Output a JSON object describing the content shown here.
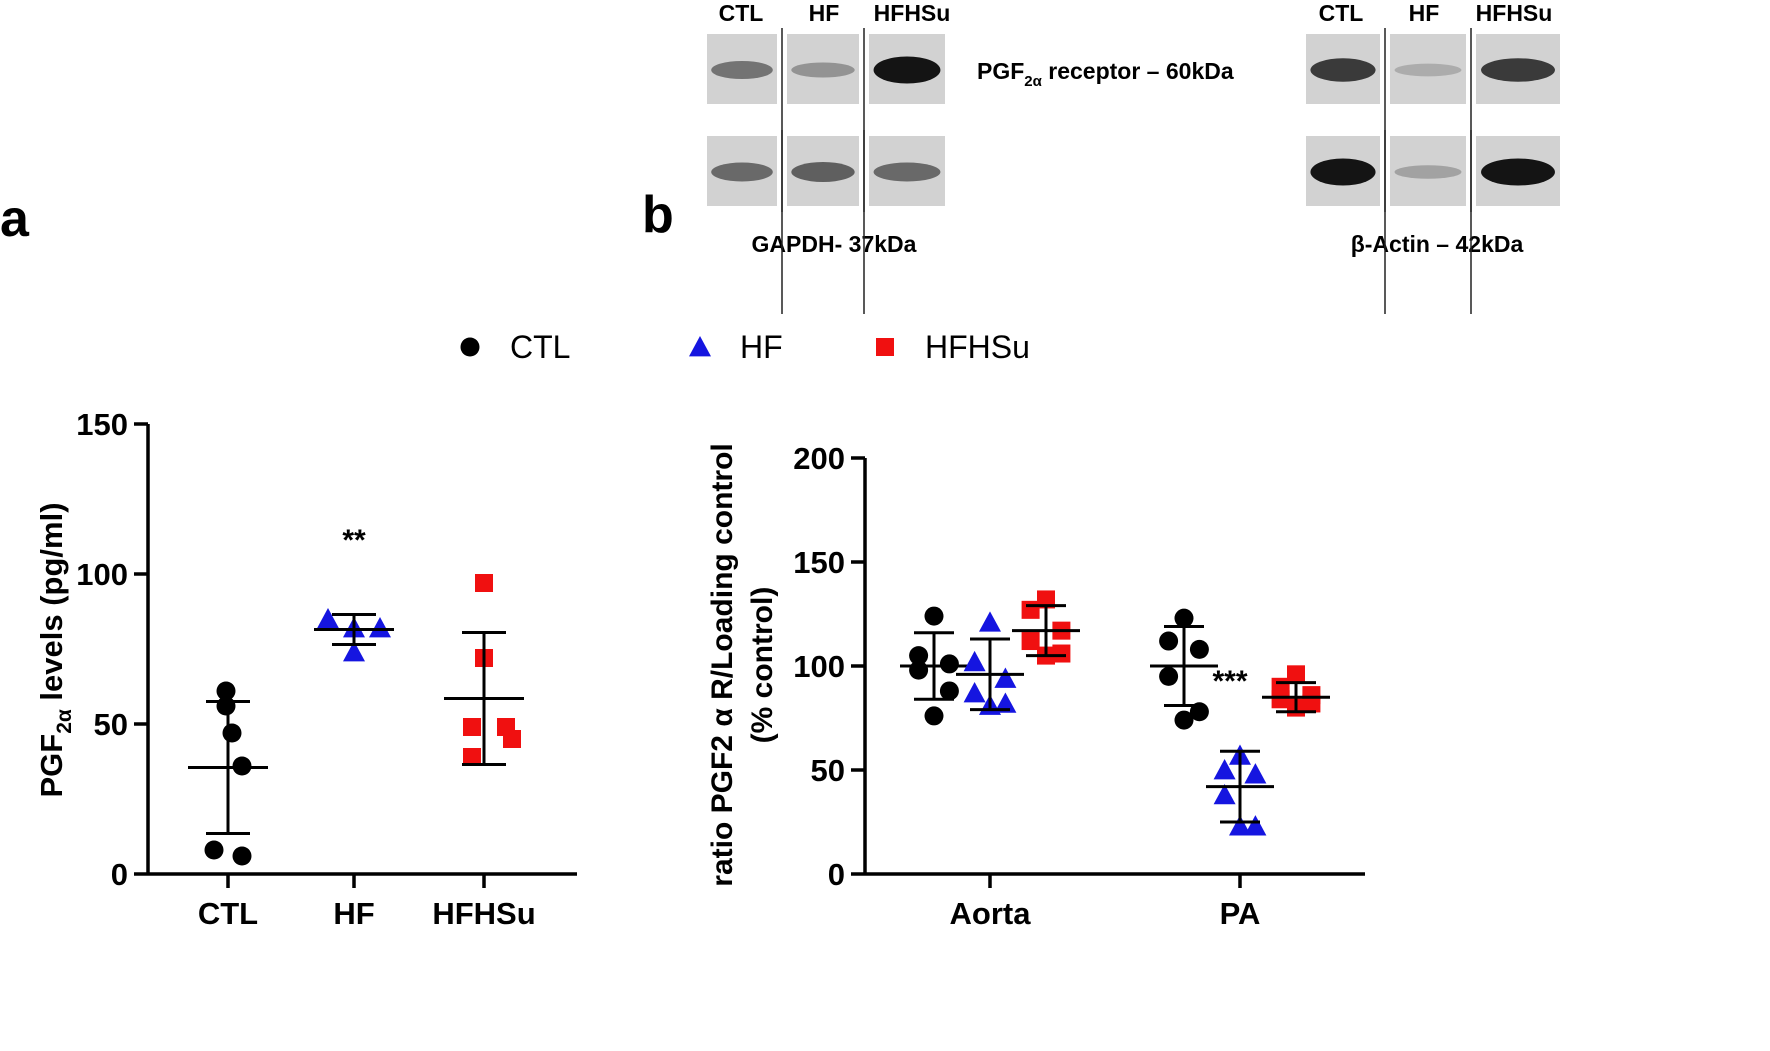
{
  "panel_labels": {
    "a": "a",
    "b": "b"
  },
  "legend": [
    {
      "label": "CTL",
      "color": "#000000",
      "marker": "circle"
    },
    {
      "label": "HF",
      "color": "#1515e0",
      "marker": "triangle"
    },
    {
      "label": "HFHSu",
      "color": "#f01010",
      "marker": "square"
    }
  ],
  "blots": {
    "left_lanes": [
      "CTL",
      "HF",
      "HFHSu"
    ],
    "right_lanes": [
      "CTL",
      "HF",
      "HFHSu"
    ],
    "receptor_label": {
      "prefix": "PGF",
      "sub": "2α",
      "suffix": " receptor – 60kDa"
    },
    "gapdh_label": "GAPDH- 37kDa",
    "actin_label": "β-Actin – 42kDa",
    "left_top_intensity": [
      0.45,
      0.28,
      0.95
    ],
    "left_bottom_intensity": [
      0.5,
      0.55,
      0.5
    ],
    "right_top_intensity": [
      0.75,
      0.15,
      0.75
    ],
    "right_bottom_intensity": [
      0.95,
      0.2,
      0.95
    ]
  },
  "chart_data": [
    {
      "type": "scatter",
      "id": "panel-a",
      "ylabel": {
        "prefix": "PGF",
        "sub": "2α",
        "suffix": " levels (pg/ml)"
      },
      "ylim": [
        0,
        150
      ],
      "yticks": [
        0,
        50,
        100,
        150
      ],
      "categories": [
        "CTL",
        "HF",
        "HFHSu"
      ],
      "series": [
        {
          "name": "CTL",
          "color": "#000000",
          "marker": "circle",
          "points": [
            61,
            56,
            47,
            36,
            8,
            6
          ],
          "mean": 35.5,
          "sd": 22
        },
        {
          "name": "HF",
          "color": "#1515e0",
          "marker": "triangle",
          "points": [
            85,
            82,
            82,
            74
          ],
          "mean": 81.5,
          "sd": 5
        },
        {
          "name": "HFHSu",
          "color": "#f01010",
          "marker": "square",
          "points": [
            97,
            72,
            49,
            49,
            45,
            39
          ],
          "mean": 58.5,
          "sd": 22
        }
      ],
      "annotations": [
        {
          "category": "HF",
          "text": "**",
          "y": 108
        }
      ]
    },
    {
      "type": "scatter",
      "id": "panel-b",
      "ylabel_line1": "ratio PGF2 α R/Loading control",
      "ylabel_line2": "(% control)",
      "ylim": [
        0,
        200
      ],
      "yticks": [
        0,
        50,
        100,
        150,
        200
      ],
      "categories": [
        "Aorta",
        "PA"
      ],
      "series": [
        {
          "name": "CTL",
          "color": "#000000",
          "marker": "circle",
          "groups": [
            {
              "points": [
                124,
                105,
                101,
                98,
                88,
                76
              ],
              "mean": 100,
              "sd": 16
            },
            {
              "points": [
                123,
                112,
                108,
                95,
                78,
                74
              ],
              "mean": 100,
              "sd": 19
            }
          ]
        },
        {
          "name": "HF",
          "color": "#1515e0",
          "marker": "triangle",
          "groups": [
            {
              "points": [
                121,
                102,
                94,
                87,
                82,
                81
              ],
              "mean": 96,
              "sd": 17
            },
            {
              "points": [
                57,
                50,
                48,
                38,
                23,
                23
              ],
              "mean": 42,
              "sd": 17
            }
          ]
        },
        {
          "name": "HFHSu",
          "color": "#f01010",
          "marker": "square",
          "groups": [
            {
              "points": [
                132,
                127,
                117,
                112,
                106,
                105
              ],
              "mean": 117,
              "sd": 12
            },
            {
              "points": [
                96,
                90,
                86,
                84,
                82,
                80
              ],
              "mean": 85,
              "sd": 7
            }
          ]
        }
      ],
      "annotations": [
        {
          "category": "PA",
          "series": "HF",
          "text": "***",
          "y": 88
        }
      ]
    }
  ]
}
